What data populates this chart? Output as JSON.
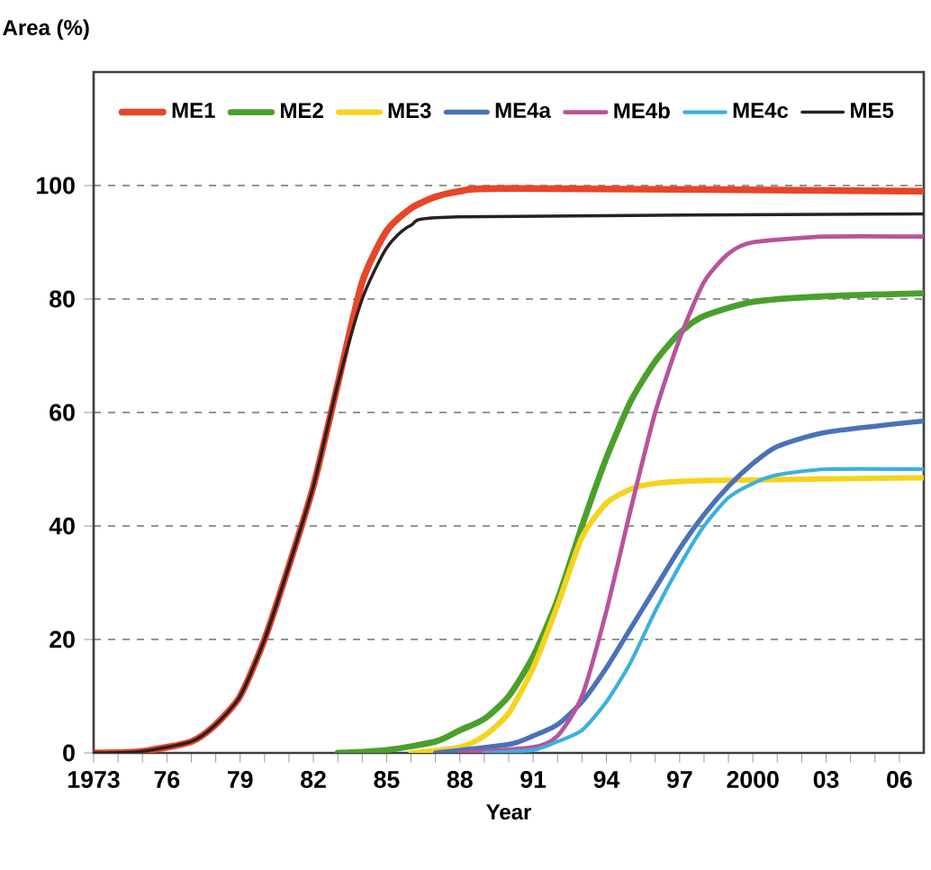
{
  "chart_data": {
    "type": "line",
    "xlabel": "Year",
    "ylabel": "Area (%)",
    "xlim": [
      1973,
      2007
    ],
    "ylim": [
      0,
      120
    ],
    "xticks": [
      {
        "value": 1973,
        "label": "1973"
      },
      {
        "value": 1974,
        "label": null
      },
      {
        "value": 1975,
        "label": null
      },
      {
        "value": 1976,
        "label": "76"
      },
      {
        "value": 1977,
        "label": null
      },
      {
        "value": 1978,
        "label": null
      },
      {
        "value": 1979,
        "label": "79"
      },
      {
        "value": 1980,
        "label": null
      },
      {
        "value": 1981,
        "label": null
      },
      {
        "value": 1982,
        "label": "82"
      },
      {
        "value": 1983,
        "label": null
      },
      {
        "value": 1984,
        "label": null
      },
      {
        "value": 1985,
        "label": "85"
      },
      {
        "value": 1986,
        "label": null
      },
      {
        "value": 1987,
        "label": null
      },
      {
        "value": 1988,
        "label": "88"
      },
      {
        "value": 1989,
        "label": null
      },
      {
        "value": 1990,
        "label": null
      },
      {
        "value": 1991,
        "label": "91"
      },
      {
        "value": 1992,
        "label": null
      },
      {
        "value": 1993,
        "label": null
      },
      {
        "value": 1994,
        "label": "94"
      },
      {
        "value": 1995,
        "label": null
      },
      {
        "value": 1996,
        "label": null
      },
      {
        "value": 1997,
        "label": "97"
      },
      {
        "value": 1998,
        "label": null
      },
      {
        "value": 1999,
        "label": null
      },
      {
        "value": 2000,
        "label": "2000"
      },
      {
        "value": 2001,
        "label": null
      },
      {
        "value": 2002,
        "label": null
      },
      {
        "value": 2003,
        "label": "03"
      },
      {
        "value": 2004,
        "label": null
      },
      {
        "value": 2005,
        "label": null
      },
      {
        "value": 2006,
        "label": "06"
      }
    ],
    "yticks": [
      0,
      20,
      40,
      60,
      80,
      100
    ],
    "grid": "y",
    "legend": "top",
    "marker": "none",
    "line_style": "solid",
    "series": [
      {
        "name": "ME1",
        "color": "#e8452a",
        "x": [
          1973,
          1975,
          1977,
          1978,
          1979,
          1980,
          1981,
          1982,
          1983,
          1984,
          1985,
          1986,
          1987,
          1988,
          1990,
          2007
        ],
        "values": [
          0,
          0.3,
          2,
          5,
          10,
          20,
          33,
          47,
          65,
          83,
          92,
          96,
          98,
          99,
          99.5,
          99
        ]
      },
      {
        "name": "ME2",
        "color": "#4aa02c",
        "x": [
          1983,
          1985,
          1987,
          1988,
          1989,
          1990,
          1991,
          1992,
          1993,
          1994,
          1995,
          1996,
          1997,
          1998,
          2000,
          2003,
          2007
        ],
        "values": [
          0,
          0.5,
          2,
          4,
          6,
          10,
          17,
          27,
          40,
          52,
          62,
          69,
          74,
          77,
          79.5,
          80.5,
          81
        ]
      },
      {
        "name": "ME3",
        "color": "#f5d31e",
        "x": [
          1986,
          1988,
          1989,
          1990,
          1991,
          1992,
          1993,
          1994,
          1995,
          1996,
          1998,
          2007
        ],
        "values": [
          0,
          1,
          3,
          7,
          15,
          26,
          38,
          44,
          46.5,
          47.5,
          48,
          48.5
        ]
      },
      {
        "name": "ME4a",
        "color": "#4a72b8",
        "x": [
          1987,
          1990,
          1991,
          1992,
          1993,
          1994,
          1995,
          1996,
          1997,
          1998,
          1999,
          2000,
          2001,
          2003,
          2007
        ],
        "values": [
          0,
          1.5,
          3,
          5,
          9,
          15,
          22,
          29,
          36,
          42,
          47,
          51,
          54,
          56.5,
          58.5
        ]
      },
      {
        "name": "ME4b",
        "color": "#b8549c",
        "x": [
          1988,
          1991,
          1992,
          1993,
          1994,
          1995,
          1996,
          1997,
          1998,
          1999,
          2000,
          2003,
          2007
        ],
        "values": [
          0,
          1,
          3,
          10,
          25,
          43,
          60,
          73,
          83,
          88,
          90,
          91,
          91
        ]
      },
      {
        "name": "ME4c",
        "color": "#3ab0e0",
        "x": [
          1989,
          1991,
          1992,
          1993,
          1994,
          1995,
          1996,
          1997,
          1998,
          1999,
          2000,
          2001,
          2003,
          2007
        ],
        "values": [
          0,
          0.5,
          2,
          4,
          9,
          16,
          25,
          33,
          40,
          45,
          47.5,
          49,
          50,
          50
        ]
      },
      {
        "name": "ME5",
        "color": "#2a2020",
        "x": [
          1973,
          1975,
          1977,
          1978,
          1979,
          1980,
          1981,
          1982,
          1983,
          1984,
          1985,
          1986,
          1988,
          2007
        ],
        "values": [
          0,
          0.3,
          2,
          5,
          10,
          20,
          33,
          47,
          65,
          80,
          89,
          93,
          94.5,
          95
        ]
      }
    ]
  }
}
